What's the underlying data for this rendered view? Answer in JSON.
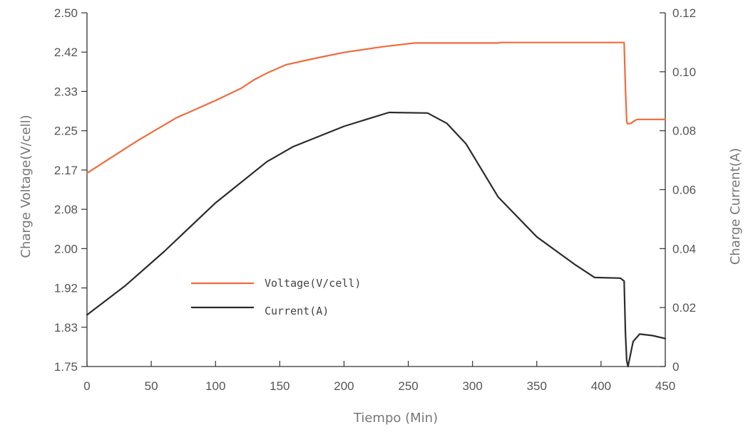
{
  "chart_data": {
    "type": "line",
    "xlabel": "Tiempo (Min)",
    "ylabel": "Charge Voltage(V/cell)",
    "y2label": "Charge Current(A)",
    "xlim": [
      0,
      450
    ],
    "ylim": [
      1.75,
      2.5
    ],
    "y2lim": [
      0,
      0.12
    ],
    "x_ticks": [
      "0",
      "50",
      "100",
      "150",
      "200",
      "250",
      "300",
      "350",
      "400",
      "450"
    ],
    "y_ticks": [
      "1.75",
      "1.83",
      "1.92",
      "2.00",
      "2.08",
      "2.17",
      "2.25",
      "2.33",
      "2.42",
      "2.50"
    ],
    "y2_ticks": [
      "0",
      "0.02",
      "0.04",
      "0.06",
      "0.08",
      "0.10",
      "0.12"
    ],
    "grid": false,
    "legend_position": "lower-left",
    "series": [
      {
        "name": "Voltage(V/cell)",
        "axis": "left",
        "color": "#f06b3c",
        "x": [
          0,
          20,
          40,
          60,
          70,
          80,
          100,
          120,
          130,
          140,
          155,
          180,
          200,
          230,
          255,
          320,
          322,
          390,
          418,
          419,
          420,
          420.5,
          423,
          426,
          428,
          450
        ],
        "y": [
          2.16,
          2.195,
          2.23,
          2.262,
          2.278,
          2.29,
          2.314,
          2.34,
          2.358,
          2.372,
          2.39,
          2.405,
          2.416,
          2.428,
          2.436,
          2.436,
          2.437,
          2.437,
          2.437,
          2.34,
          2.27,
          2.265,
          2.265,
          2.271,
          2.274,
          2.274
        ]
      },
      {
        "name": "Current(A)",
        "axis": "right",
        "color": "#2b2b2b",
        "x": [
          0,
          30,
          60,
          100,
          140,
          160,
          200,
          235,
          265,
          280,
          295,
          320,
          350,
          380,
          395,
          415,
          418,
          419,
          420,
          421,
          425,
          430,
          440,
          450
        ],
        "y": [
          0.0175,
          0.0275,
          0.039,
          0.0555,
          0.0695,
          0.0745,
          0.0815,
          0.0862,
          0.086,
          0.0825,
          0.0755,
          0.0575,
          0.044,
          0.0345,
          0.0302,
          0.03,
          0.029,
          0.0115,
          0.002,
          0,
          0.0085,
          0.011,
          0.0105,
          0.0095
        ]
      }
    ]
  }
}
